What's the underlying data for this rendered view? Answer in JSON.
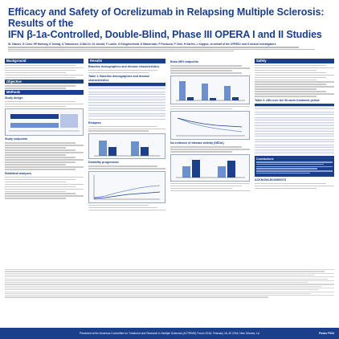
{
  "poster": {
    "title_line1": "Efficacy and Safety of Ocrelizumab in Relapsing Multiple Sclerosis: Results of the",
    "title_line2": "IFN β-1a-Controlled, Double-Blind, Phase III OPERA I and II Studies",
    "authors": "SL Hauser, G Comi, HP Hartung, K Selmaj, A Traboulsee, A Bar-Or, DL Arnold, F Lublin, G Klingelschmitt, D Masterman, P Fontoura, P Chin, H Garren, L Kappos, on behalf of the OPERA I and II clinical investigators",
    "footer_text": "Presented at the Americas Committee for Treatment and Research in Multiple Sclerosis (ACTRIMS) Forum 2016; February 18–20 2016; New Orleans, LA",
    "poster_number": "Poster P024",
    "accent_color": "#1b3f8b"
  },
  "sections": {
    "background": "Background",
    "objective": "Objective",
    "methods": "Methods",
    "study_design": "Study design",
    "study_endpoints": "Study endpoints",
    "statistical_analyses": "Statistical analyses",
    "results": "Results",
    "baseline": "Baseline demographics and disease characteristics",
    "table1": "Table 1: Baseline demographics and disease characteristics",
    "relapses": "Relapses",
    "disability": "Disability progression",
    "brain_mri": "Brain MRI endpoints",
    "no_evidence": "No evidence of disease activity (NEDA)",
    "safety": "Safety",
    "table2": "Table 2: AEs over the 96-week treatment period",
    "conclusions": "Conclusions",
    "acknowledgments": "ACKNOWLEDGMENTS"
  }
}
